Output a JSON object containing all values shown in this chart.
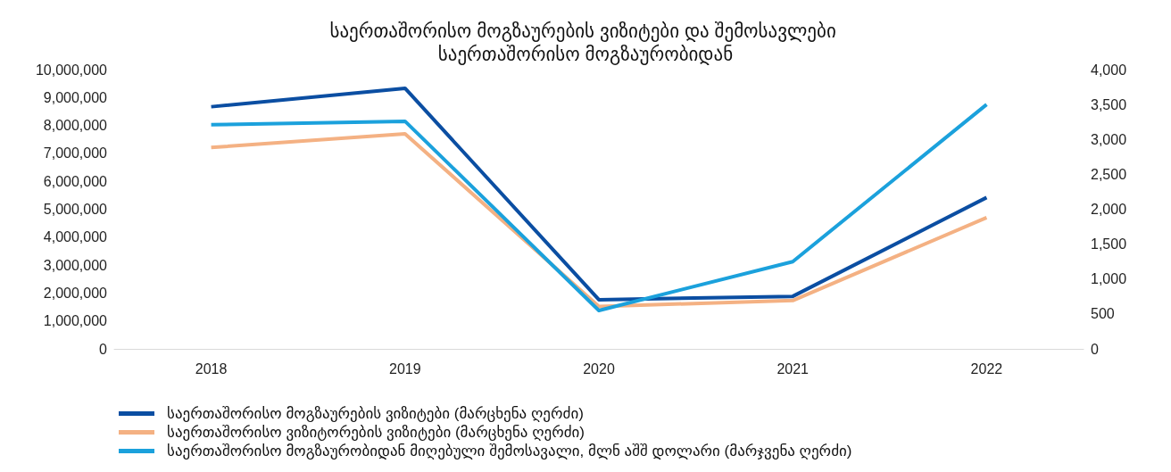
{
  "chart_data": {
    "type": "line",
    "title": "საერთაშორისო მოგზაურების ვიზიტები და შემოსავლები საერთაშორისო მოგზაურობიდან",
    "categories": [
      "2018",
      "2019",
      "2020",
      "2021",
      "2022"
    ],
    "series": [
      {
        "name": "საერთაშორისო მოგზაურების ვიზიტები (მარცხენა ღერძი)",
        "color": "#0b4ea2",
        "values": [
          8670000,
          9330000,
          1760000,
          1880000,
          5420000
        ]
      },
      {
        "name": "საერთაშორისო ვიზიტორების ვიზიტები (მარცხენა ღერძი)",
        "color": "#f4b183",
        "values": [
          7210000,
          7700000,
          1520000,
          1730000,
          4700000
        ]
      },
      {
        "name": "საერთაშორისო მოგზაურობიდან მიღებული შემოსავალი, მლნ აშშ დოლარი (მარჯვენა ღერძი)",
        "color": "#1ba1dc",
        "values": [
          3210,
          3260,
          550,
          1250,
          3500
        ],
        "axis": "y2"
      }
    ],
    "ylim": [
      0,
      10000000
    ],
    "yticks": [
      0,
      {
        "value": 1000000,
        "label": "1,000,000"
      },
      {
        "value": 2000000,
        "label": "2,000,000"
      },
      {
        "value": 3000000,
        "label": "3,000,000"
      },
      {
        "value": 4000000,
        "label": "4,000,000"
      },
      {
        "value": 5000000,
        "label": "5,000,000"
      },
      {
        "value": 6000000,
        "label": "6,000,000"
      },
      {
        "value": 7000000,
        "label": "7,000,000"
      },
      {
        "value": 8000000,
        "label": "8,000,000"
      },
      {
        "value": 9000000,
        "label": "9,000,000"
      },
      {
        "value": 10000000,
        "label": "10,000,000"
      }
    ],
    "y2lim": [
      0,
      4000
    ],
    "y2ticks": [
      0,
      500,
      {
        "value": 1000,
        "label": "1,000"
      },
      {
        "value": 1500,
        "label": "1,500"
      },
      {
        "value": 2000,
        "label": "2,000"
      },
      {
        "value": 2500,
        "label": "2,500"
      },
      {
        "value": 3000,
        "label": "3,000"
      },
      {
        "value": 3500,
        "label": "3,500"
      },
      {
        "value": 4000,
        "label": "4,000"
      }
    ],
    "grid": false,
    "legend": "bottom",
    "marker": "none",
    "line_style": "solid"
  }
}
